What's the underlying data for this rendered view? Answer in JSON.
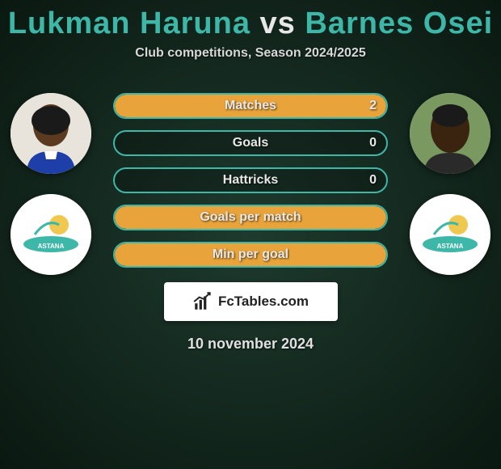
{
  "header": {
    "player1": "Lukman Haruna",
    "vs": "vs",
    "player2": "Barnes Osei",
    "subtitle": "Club competitions, Season 2024/2025"
  },
  "stats": [
    {
      "label": "Matches",
      "left_val": "",
      "right_val": "2",
      "left_pct": 0,
      "right_pct": 100
    },
    {
      "label": "Goals",
      "left_val": "",
      "right_val": "0",
      "left_pct": 0,
      "right_pct": 0
    },
    {
      "label": "Hattricks",
      "left_val": "",
      "right_val": "0",
      "left_pct": 0,
      "right_pct": 0
    },
    {
      "label": "Goals per match",
      "left_val": "",
      "right_val": "",
      "left_pct": 0,
      "right_pct": 100
    },
    {
      "label": "Min per goal",
      "left_val": "",
      "right_val": "",
      "left_pct": 0,
      "right_pct": 100
    }
  ],
  "brand": "FcTables.com",
  "date": "10 november 2024",
  "colors": {
    "accent": "#3db8a8",
    "right_fill": "#e8a33a",
    "left_fill": "#2aa896",
    "bg_dark": "#0a1810",
    "bg_mid": "#1e3a2e",
    "text": "#e8e8e8"
  },
  "club": "ASTANA"
}
